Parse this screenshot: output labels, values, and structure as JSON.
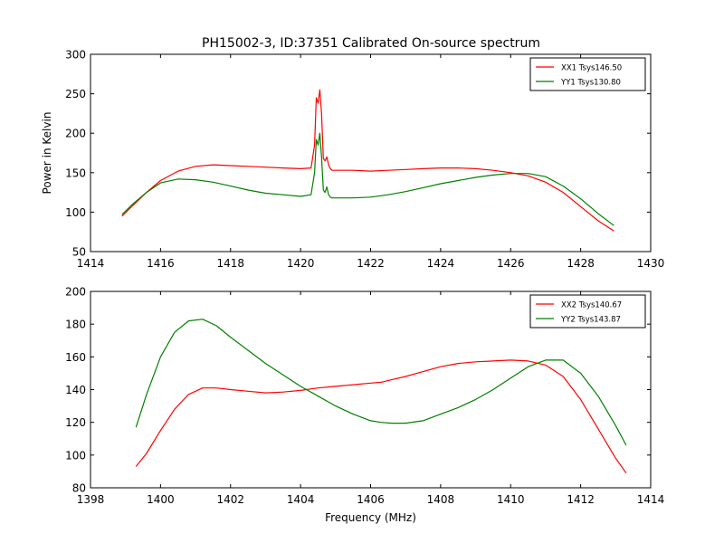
{
  "chart_data": {
    "title": "PH15002-3, ID:37351 Calibrated On-source spectrum",
    "panels": [
      {
        "type": "line",
        "xlim": [
          1414,
          1430
        ],
        "ylim": [
          50,
          300
        ],
        "xticks": [
          "1414",
          "1416",
          "1418",
          "1420",
          "1422",
          "1424",
          "1426",
          "1428",
          "1430"
        ],
        "yticks": [
          "50",
          "100",
          "150",
          "200",
          "250",
          "300"
        ],
        "xlabel": "",
        "ylabel": "Power in Kelvin",
        "grid": false,
        "legend_position": "top-right",
        "series": [
          {
            "name": "XX1 Tsys146.50",
            "color": "#ff0000",
            "x": [
              1414.9,
              1415.2,
              1415.6,
              1416.0,
              1416.5,
              1417.0,
              1417.5,
              1418.0,
              1418.5,
              1419.0,
              1419.5,
              1420.0,
              1420.3,
              1420.4,
              1420.45,
              1420.5,
              1420.55,
              1420.6,
              1420.65,
              1420.7,
              1420.75,
              1420.8,
              1420.85,
              1420.9,
              1421.0,
              1421.5,
              1422.0,
              1422.5,
              1423.0,
              1423.5,
              1424.0,
              1424.5,
              1425.0,
              1425.5,
              1426.0,
              1426.5,
              1427.0,
              1427.5,
              1428.0,
              1428.5,
              1428.95
            ],
            "y": [
              95,
              108,
              125,
              140,
              152,
              158,
              160,
              159,
              158,
              157,
              156,
              155,
              156,
              185,
              245,
              238,
              255,
              225,
              168,
              165,
              170,
              160,
              155,
              153,
              153,
              153,
              152,
              153,
              154,
              155,
              156,
              156,
              155,
              153,
              150,
              146,
              138,
              125,
              107,
              89,
              76
            ]
          },
          {
            "name": "YY1 Tsys130.80",
            "color": "#008000",
            "x": [
              1414.9,
              1415.2,
              1415.6,
              1416.0,
              1416.5,
              1417.0,
              1417.5,
              1418.0,
              1418.5,
              1419.0,
              1419.5,
              1420.0,
              1420.3,
              1420.4,
              1420.45,
              1420.5,
              1420.55,
              1420.6,
              1420.65,
              1420.7,
              1420.75,
              1420.8,
              1420.85,
              1420.9,
              1421.0,
              1421.5,
              1422.0,
              1422.5,
              1423.0,
              1423.5,
              1424.0,
              1424.5,
              1425.0,
              1425.5,
              1426.0,
              1426.5,
              1427.0,
              1427.5,
              1428.0,
              1428.5,
              1428.95
            ],
            "y": [
              97,
              110,
              125,
              137,
              142,
              141,
              138,
              133,
              128,
              124,
              122,
              120,
              122,
              150,
              192,
              185,
              200,
              170,
              128,
              125,
              132,
              122,
              119,
              118,
              118,
              118,
              119,
              122,
              126,
              131,
              136,
              140,
              144,
              147,
              149,
              149,
              145,
              133,
              117,
              98,
              83
            ]
          }
        ]
      },
      {
        "type": "line",
        "xlim": [
          1398,
          1414
        ],
        "ylim": [
          80,
          200
        ],
        "xticks": [
          "1398",
          "1400",
          "1402",
          "1404",
          "1406",
          "1408",
          "1410",
          "1412",
          "1414"
        ],
        "yticks": [
          "80",
          "100",
          "120",
          "140",
          "160",
          "180",
          "200"
        ],
        "xlabel": "Frequency (MHz)",
        "ylabel": "",
        "grid": false,
        "legend_position": "top-right",
        "series": [
          {
            "name": "XX2 Tsys140.67",
            "color": "#ff0000",
            "x": [
              1399.3,
              1399.6,
              1400.0,
              1400.4,
              1400.8,
              1401.2,
              1401.6,
              1402.0,
              1402.5,
              1403.0,
              1403.5,
              1404.0,
              1404.5,
              1405.0,
              1405.5,
              1406.0,
              1406.3,
              1406.6,
              1407.0,
              1407.5,
              1408.0,
              1408.5,
              1409.0,
              1409.5,
              1410.0,
              1410.5,
              1411.0,
              1411.5,
              1412.0,
              1412.5,
              1413.0,
              1413.3
            ],
            "y": [
              93,
              101,
              115,
              128,
              137,
              141,
              141,
              140,
              139,
              138,
              138.5,
              139.5,
              141,
              142,
              143,
              144,
              144.5,
              146,
              148,
              151,
              154,
              156,
              157,
              157.5,
              158,
              157.5,
              155,
              148,
              134,
              116,
              98,
              89
            ]
          },
          {
            "name": "YY2 Tsys143.87",
            "color": "#008000",
            "x": [
              1399.3,
              1399.6,
              1400.0,
              1400.4,
              1400.8,
              1401.2,
              1401.6,
              1402.0,
              1402.5,
              1403.0,
              1403.5,
              1404.0,
              1404.5,
              1405.0,
              1405.5,
              1406.0,
              1406.3,
              1406.6,
              1407.0,
              1407.5,
              1408.0,
              1408.5,
              1409.0,
              1409.5,
              1410.0,
              1410.5,
              1411.0,
              1411.5,
              1412.0,
              1412.5,
              1413.0,
              1413.3
            ],
            "y": [
              117,
              137,
              160,
              175,
              182,
              183,
              179,
              172,
              164,
              156,
              149,
              142,
              136,
              130,
              125,
              121,
              120,
              119.5,
              119.5,
              121,
              125,
              129,
              134,
              140,
              147,
              154,
              158,
              158,
              150,
              136,
              118,
              106
            ]
          }
        ]
      }
    ]
  }
}
